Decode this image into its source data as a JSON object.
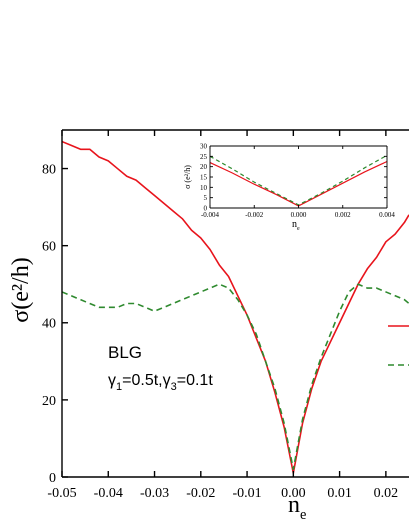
{
  "chart_data": [
    {
      "type": "line",
      "xlabel_main": "n",
      "xlabel_sub": "e",
      "ylabel": "σ(e²/h)",
      "xlim": [
        -0.05,
        0.025
      ],
      "ylim": [
        0,
        90
      ],
      "xticks": [
        -0.05,
        -0.04,
        -0.03,
        -0.02,
        -0.01,
        0.0,
        0.01,
        0.02
      ],
      "xtick_labels": [
        "-0.05",
        "-0.04",
        "-0.03",
        "-0.02",
        "-0.01",
        "0.00",
        "0.01",
        "0.02"
      ],
      "yticks": [
        0,
        20,
        40,
        60,
        80
      ],
      "ytick_labels": [
        "0",
        "20",
        "40",
        "60",
        "80"
      ],
      "grid": false,
      "annotation": {
        "line1": "BLG",
        "line2_a": "γ",
        "line2_a_sub": "1",
        "line2_b": "=0.5t,γ",
        "line2_b_sub": "3",
        "line2_c": "=0.1t"
      },
      "series": [
        {
          "style": "solid",
          "color": "#e8141c",
          "x": [
            -0.05,
            -0.048,
            -0.046,
            -0.044,
            -0.042,
            -0.04,
            -0.038,
            -0.036,
            -0.034,
            -0.032,
            -0.03,
            -0.028,
            -0.026,
            -0.024,
            -0.022,
            -0.02,
            -0.018,
            -0.016,
            -0.014,
            -0.012,
            -0.01,
            -0.008,
            -0.006,
            -0.004,
            -0.002,
            0.0,
            0.002,
            0.004,
            0.006,
            0.008,
            0.01,
            0.012,
            0.014,
            0.016,
            0.018,
            0.02,
            0.022,
            0.024,
            0.025
          ],
          "y": [
            87,
            86,
            85,
            85,
            83,
            82,
            80,
            78,
            77,
            75,
            73,
            71,
            69,
            67,
            64,
            62,
            59,
            55,
            52,
            47,
            42,
            36,
            30,
            22,
            13,
            1,
            14,
            23,
            30,
            35,
            40,
            45,
            50,
            54,
            57,
            61,
            63,
            66,
            68
          ]
        },
        {
          "style": "dashed",
          "color": "#2f8a2f",
          "x": [
            -0.05,
            -0.048,
            -0.046,
            -0.044,
            -0.042,
            -0.04,
            -0.038,
            -0.036,
            -0.034,
            -0.032,
            -0.03,
            -0.028,
            -0.026,
            -0.024,
            -0.022,
            -0.02,
            -0.018,
            -0.016,
            -0.014,
            -0.012,
            -0.01,
            -0.008,
            -0.006,
            -0.004,
            -0.002,
            0.0,
            0.002,
            0.004,
            0.006,
            0.008,
            0.01,
            0.012,
            0.014,
            0.016,
            0.018,
            0.02,
            0.022,
            0.024,
            0.025
          ],
          "y": [
            48,
            47,
            46,
            45,
            44,
            44,
            44,
            45,
            45,
            44,
            43,
            44,
            45,
            46,
            47,
            48,
            49,
            50,
            49,
            46,
            42,
            37,
            30,
            23,
            14,
            2,
            15,
            24,
            31,
            37,
            43,
            48,
            50,
            49,
            49,
            48,
            47,
            46,
            45
          ]
        }
      ]
    },
    {
      "type": "line",
      "xlabel_main": "n",
      "xlabel_sub": "e",
      "ylabel": "σ (e²/h)",
      "xlim": [
        -0.004,
        0.004
      ],
      "ylim": [
        0,
        30
      ],
      "xticks": [
        -0.004,
        -0.002,
        0.0,
        0.002,
        0.004
      ],
      "xtick_labels": [
        "-0.004",
        "-0.002",
        "0.000",
        "0.002",
        "0.004"
      ],
      "yticks": [
        0,
        5,
        10,
        15,
        20,
        25,
        30
      ],
      "ytick_labels": [
        "0",
        "5",
        "10",
        "15",
        "20",
        "25",
        "30"
      ],
      "grid": false,
      "series": [
        {
          "style": "solid",
          "color": "#e8141c",
          "x": [
            -0.004,
            -0.003,
            -0.002,
            -0.001,
            0.0,
            0.001,
            0.002,
            0.003,
            0.004
          ],
          "y": [
            22,
            17,
            11.5,
            6.5,
            1,
            6.5,
            12,
            17.5,
            22.5
          ]
        },
        {
          "style": "dashed",
          "color": "#2f8a2f",
          "x": [
            -0.004,
            -0.003,
            -0.002,
            -0.001,
            0.0,
            0.001,
            0.002,
            0.003,
            0.004
          ],
          "y": [
            25,
            19,
            12.5,
            7,
            1.5,
            7,
            13,
            19.5,
            25.5
          ]
        }
      ]
    }
  ]
}
